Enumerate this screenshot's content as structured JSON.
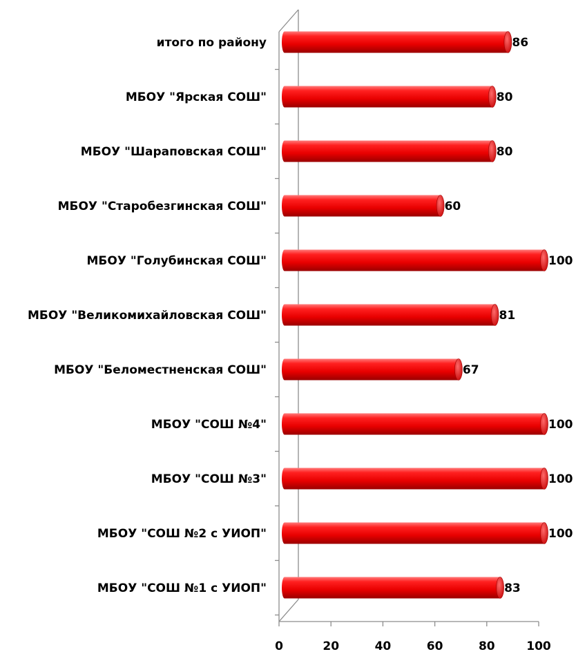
{
  "chart_data": {
    "type": "bar",
    "orientation": "horizontal",
    "categories": [
      "итого по району",
      "МБОУ \"Ярская СОШ\"",
      "МБОУ \"Шараповская  СОШ\"",
      "МБОУ \"Старобезгинская СОШ\"",
      "МБОУ \"Голубинская СОШ\"",
      "МБОУ \"Великомихайловская СОШ\"",
      "МБОУ \"Беломестненская СОШ\"",
      "МБОУ \"СОШ №4\"",
      "МБОУ \"СОШ №3\"",
      "МБОУ \"СОШ №2 с УИОП\"",
      "МБОУ \"СОШ №1 с УИОП\""
    ],
    "values": [
      86,
      80,
      80,
      60,
      100,
      81,
      67,
      100,
      100,
      100,
      83
    ],
    "value_labels": [
      "86",
      "80",
      "80",
      "60",
      "100",
      "81",
      "67",
      "100",
      "100",
      "100",
      "83"
    ],
    "xlim": [
      0,
      100
    ],
    "x_ticks": [
      0,
      20,
      40,
      60,
      80,
      100
    ],
    "x_tick_labels": [
      "0",
      "20",
      "40",
      "60",
      "80",
      "100"
    ],
    "title": "",
    "xlabel": "",
    "ylabel": "",
    "grid": false,
    "legend": "none",
    "style": "3d-cylinder",
    "bar_color": "#ff0000"
  }
}
